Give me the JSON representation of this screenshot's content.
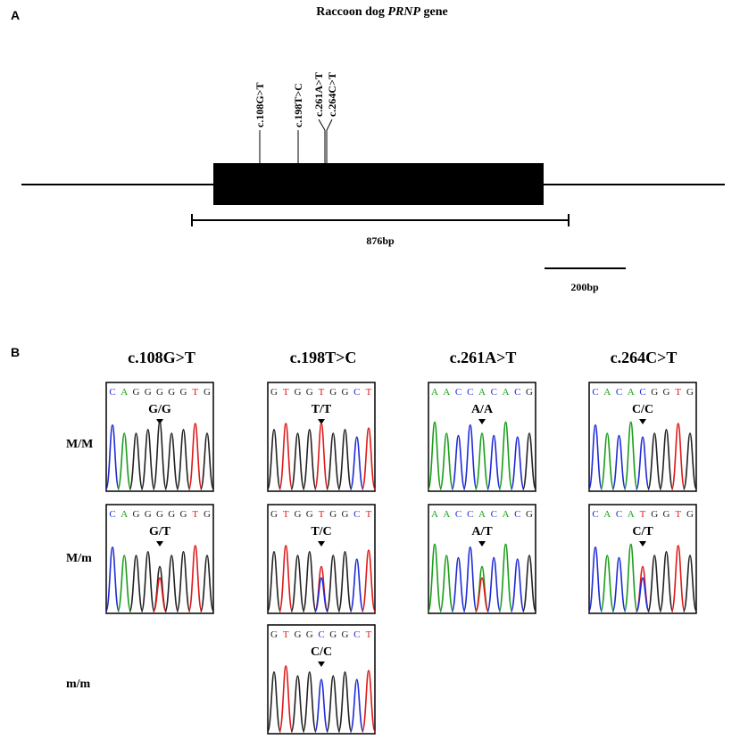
{
  "panel_a": {
    "letter": "A",
    "title_prefix": "Raccoon dog ",
    "title_gene": "PRNP",
    "title_suffix": " gene",
    "snps": [
      "c.108G>T",
      "c.198T>C",
      "c.261A>T",
      "c.264C>T"
    ],
    "length_label": "876bp",
    "scale_label": "200bp"
  },
  "panel_b": {
    "letter": "B",
    "row_labels": [
      "M/M",
      "M/m",
      "m/m"
    ],
    "base_colors": {
      "A": "#1a9e1a",
      "C": "#1f2bd6",
      "G": "#222222",
      "T": "#e01818"
    },
    "columns": [
      {
        "title": "c.108G>T",
        "traces": [
          {
            "row": 0,
            "seq": "CAGGGGGTG",
            "genotype": "G/G",
            "center": 4
          },
          {
            "row": 1,
            "seq": "CAGGGGGTG",
            "genotype": "G/T",
            "center": 4,
            "het": "T"
          }
        ]
      },
      {
        "title": "c.198T>C",
        "traces": [
          {
            "row": 0,
            "seq": "GTGGTGGCT",
            "genotype": "T/T",
            "center": 4
          },
          {
            "row": 1,
            "seq": "GTGGTGGCT",
            "genotype": "T/C",
            "center": 4,
            "het": "C"
          },
          {
            "row": 2,
            "seq": "GTGGCGGCT",
            "genotype": "C/C",
            "center": 4
          }
        ]
      },
      {
        "title": "c.261A>T",
        "traces": [
          {
            "row": 0,
            "seq": "AACCACACG",
            "genotype": "A/A",
            "center": 4
          },
          {
            "row": 1,
            "seq": "AACCACACG",
            "genotype": "A/T",
            "center": 4,
            "het": "T"
          }
        ]
      },
      {
        "title": "c.264C>T",
        "traces": [
          {
            "row": 0,
            "seq": "CACACGGTG",
            "genotype": "C/C",
            "center": 4
          },
          {
            "row": 1,
            "seq": "CACATGGTG",
            "genotype": "C/T",
            "center": 4,
            "het": "C"
          }
        ]
      }
    ]
  }
}
